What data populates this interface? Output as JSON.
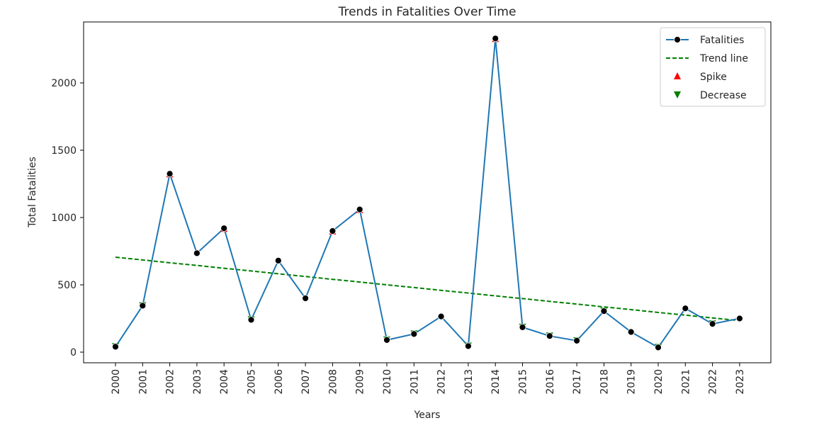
{
  "chart_data": {
    "type": "line",
    "title": "Trends in Fatalities Over Time",
    "xlabel": "Years",
    "ylabel": "Total Fatalities",
    "x": [
      2000,
      2001,
      2002,
      2003,
      2004,
      2005,
      2006,
      2007,
      2008,
      2009,
      2010,
      2011,
      2012,
      2013,
      2014,
      2015,
      2016,
      2017,
      2018,
      2019,
      2020,
      2021,
      2022,
      2023
    ],
    "ylim": [
      -80,
      2440
    ],
    "yticks": [
      0,
      500,
      1000,
      1500,
      2000
    ],
    "grid": false,
    "legend_position": "top-right",
    "series": [
      {
        "name": "Fatalities",
        "kind": "line-with-markers",
        "color": "#1f77b4",
        "marker_color": "#000000",
        "values": [
          40,
          345,
          1325,
          735,
          920,
          240,
          680,
          400,
          900,
          1060,
          90,
          135,
          265,
          45,
          2330,
          185,
          120,
          85,
          305,
          150,
          35,
          325,
          210,
          250
        ]
      },
      {
        "name": "Trend line",
        "kind": "dashed-line",
        "color": "#008000",
        "values": [
          705,
          685,
          664,
          644,
          623,
          603,
          582,
          562,
          541,
          521,
          500,
          480,
          459,
          439,
          418,
          398,
          377,
          357,
          336,
          316,
          295,
          275,
          254,
          234
        ]
      },
      {
        "name": "Spike",
        "kind": "marker",
        "marker": "triangle-up",
        "color": "#ff0000",
        "x": [
          2002,
          2004,
          2008,
          2009,
          2014
        ],
        "values": [
          1325,
          920,
          900,
          1060,
          2330
        ]
      },
      {
        "name": "Decrease",
        "kind": "marker",
        "marker": "triangle-down",
        "color": "#008000",
        "x": [
          2000,
          2001,
          2005,
          2010,
          2011,
          2013,
          2015,
          2016,
          2017,
          2018,
          2020,
          2022
        ],
        "values": [
          40,
          345,
          240,
          90,
          135,
          45,
          185,
          120,
          85,
          305,
          35,
          210
        ]
      }
    ]
  }
}
